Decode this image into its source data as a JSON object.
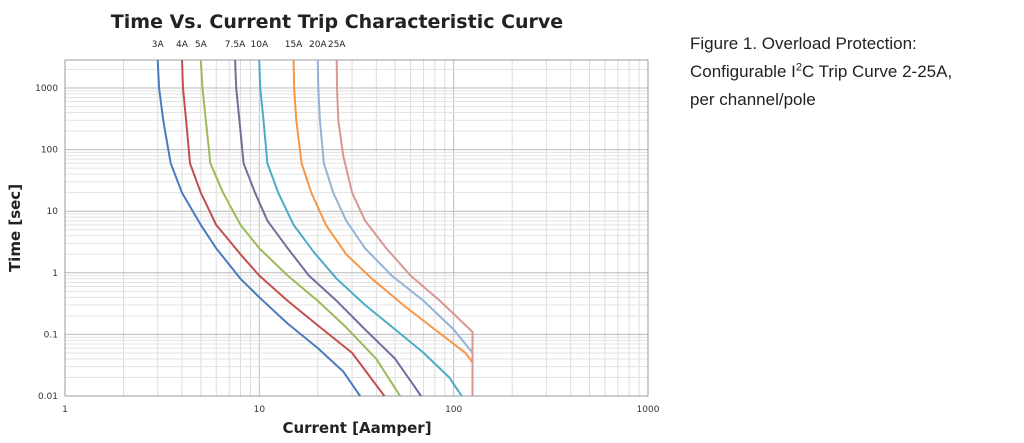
{
  "chart_data": {
    "type": "line",
    "title": "Time Vs. Current Trip Characteristic Curve",
    "xlabel": "Current [Aamper]",
    "ylabel": "Time [sec]",
    "x_scale": "log",
    "y_scale": "log",
    "xlim": [
      1,
      1000
    ],
    "ylim": [
      0.01,
      3000
    ],
    "x_ticks": [
      "1",
      "10",
      "100",
      "1000"
    ],
    "y_ticks": [
      "1000",
      "100",
      "10",
      "1",
      "0.1",
      "0.01"
    ],
    "grid": true,
    "series": [
      {
        "name": "3A",
        "color": "#4a7bbf",
        "x": [
          3.0,
          3.05,
          3.2,
          3.5,
          4,
          5,
          6,
          8,
          10,
          14,
          20,
          27,
          33
        ],
        "y": [
          3000,
          1000,
          300,
          60,
          20,
          6,
          2.5,
          0.8,
          0.4,
          0.15,
          0.06,
          0.025,
          0.01
        ]
      },
      {
        "name": "4A",
        "color": "#c0504d",
        "x": [
          4.0,
          4.05,
          4.2,
          4.4,
          5,
          6,
          8,
          10,
          14,
          20,
          30,
          44
        ],
        "y": [
          3000,
          1000,
          300,
          60,
          20,
          6,
          2,
          0.9,
          0.35,
          0.14,
          0.05,
          0.01
        ]
      },
      {
        "name": "5A",
        "color": "#9bbb59",
        "x": [
          5.0,
          5.1,
          5.3,
          5.6,
          6.5,
          8,
          10,
          14,
          20,
          28,
          40,
          53
        ],
        "y": [
          3000,
          1000,
          300,
          60,
          20,
          6,
          2.5,
          0.9,
          0.35,
          0.13,
          0.04,
          0.01
        ]
      },
      {
        "name": "7.5A",
        "color": "#7a6a9c",
        "x": [
          7.5,
          7.6,
          7.9,
          8.3,
          9.5,
          11,
          14,
          18,
          25,
          35,
          50,
          68
        ],
        "y": [
          3000,
          1000,
          300,
          60,
          20,
          7,
          2.5,
          0.9,
          0.35,
          0.12,
          0.04,
          0.01
        ]
      },
      {
        "name": "10A",
        "color": "#4bacc6",
        "x": [
          10.0,
          10.1,
          10.5,
          11,
          12.5,
          15,
          19,
          25,
          35,
          50,
          70,
          95,
          110
        ],
        "y": [
          3000,
          1000,
          300,
          60,
          20,
          6,
          2.2,
          0.8,
          0.3,
          0.12,
          0.05,
          0.02,
          0.01
        ]
      },
      {
        "name": "15A",
        "color": "#f79646",
        "x": [
          15.0,
          15.1,
          15.5,
          16.5,
          18.5,
          22,
          28,
          38,
          55,
          80,
          115,
          125,
          125
        ],
        "y": [
          3000,
          1000,
          300,
          60,
          20,
          6,
          2,
          0.8,
          0.3,
          0.12,
          0.05,
          0.035,
          0.01
        ]
      },
      {
        "name": "20A",
        "color": "#93b3d7",
        "x": [
          20.0,
          20.1,
          20.5,
          21.5,
          24,
          28,
          35,
          48,
          70,
          100,
          125,
          125
        ],
        "y": [
          3000,
          1000,
          300,
          60,
          20,
          7,
          2.5,
          0.9,
          0.35,
          0.12,
          0.05,
          0.01
        ]
      },
      {
        "name": "25A",
        "color": "#d99694",
        "x": [
          25.0,
          25.1,
          25.5,
          27,
          30,
          35,
          45,
          60,
          85,
          125,
          125
        ],
        "y": [
          3000,
          1000,
          300,
          80,
          20,
          7,
          2.5,
          0.9,
          0.35,
          0.11,
          0.01
        ]
      }
    ]
  },
  "caption": {
    "line1": "Figure 1.  Overload Protection:",
    "line2_pre": "Configurable I",
    "line2_sup": "2",
    "line2_post": "C Trip Curve 2-25A,",
    "line3": "per channel/pole"
  }
}
